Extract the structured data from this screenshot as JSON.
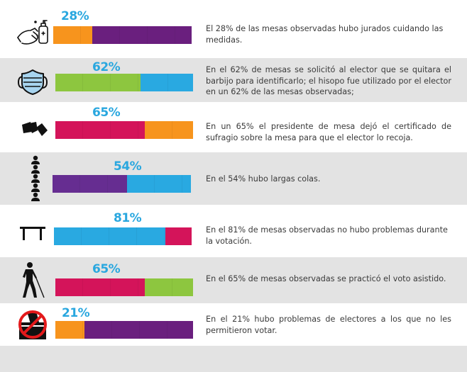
{
  "colors": {
    "orange": "#f7941d",
    "purple": "#6a1f7e",
    "purple2": "#662d91",
    "green": "#8dc63f",
    "blue": "#29a9e1",
    "crimson": "#d4145a",
    "pct_text": "#29a7df",
    "row_gray": "#e3e3e3"
  },
  "chart_data": {
    "type": "bar",
    "orientation": "horizontal-stacked-100",
    "title": "",
    "xlim": [
      0,
      100
    ],
    "rows": [
      {
        "icon": "hand-sanitizer-icon",
        "value": 28,
        "label": "28%",
        "colors": [
          "orange",
          "purple"
        ],
        "text": "El 28% de las mesas observadas hubo jurados cuidando las medidas."
      },
      {
        "icon": "face-mask-icon",
        "value": 62,
        "label": "62%",
        "colors": [
          "green",
          "blue"
        ],
        "text": "En el 62% de mesas se solicitó al elector que se quitara el barbijo para identificarlo; el hisopo fue utilizado por el elector en un 62% de las mesas observadas;"
      },
      {
        "icon": "certificate-hand-icon",
        "value": 65,
        "label": "65%",
        "colors": [
          "crimson",
          "orange"
        ],
        "text": "En un 65% el presidente de mesa dejó el certificado de sufragio sobre la mesa para que el elector lo recoja."
      },
      {
        "icon": "queue-people-icon",
        "value": 54,
        "label": "54%",
        "colors": [
          "purple2",
          "blue"
        ],
        "text": "En el 54% hubo largas colas."
      },
      {
        "icon": "table-icon",
        "value": 81,
        "label": "81%",
        "colors": [
          "blue",
          "crimson"
        ],
        "text": "En el 81% de mesas observadas no hubo problemas durante la votación."
      },
      {
        "icon": "blind-person-cane-icon",
        "value": 65,
        "label": "65%",
        "colors": [
          "crimson",
          "green"
        ],
        "text": "En el 65% de mesas observadas se practicó el voto asistido."
      },
      {
        "icon": "no-voting-icon",
        "value": 21,
        "label": "21%",
        "colors": [
          "orange",
          "purple"
        ],
        "text": "En el 21% hubo problemas de electores a los que no les permitieron votar."
      }
    ]
  }
}
